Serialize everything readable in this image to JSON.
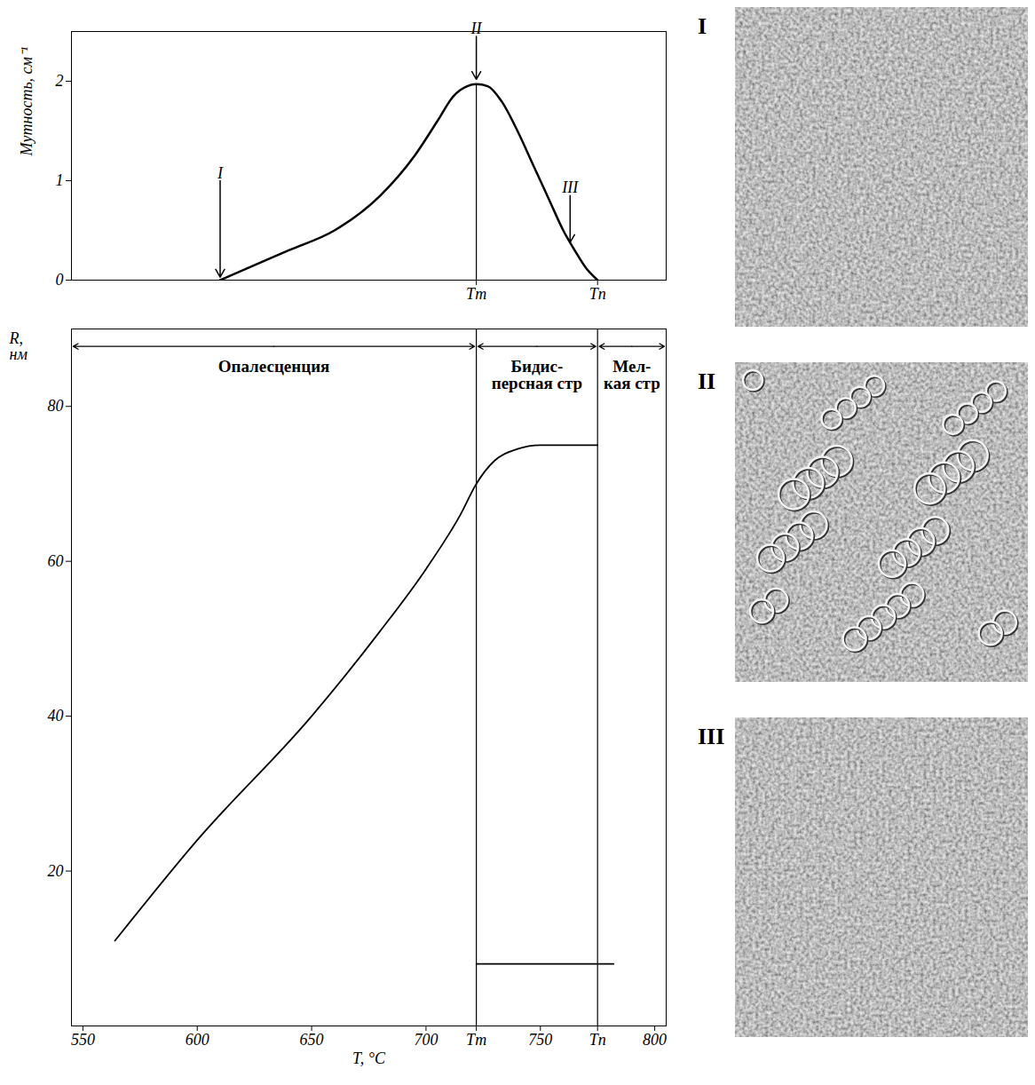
{
  "chart_data": [
    {
      "type": "line",
      "y_label": "Мутность, см⁻¹",
      "xlim": [
        545,
        805
      ],
      "ylim": [
        0,
        2.5
      ],
      "xticks": [
        {
          "value": 722,
          "label": "Tm"
        },
        {
          "value": 775,
          "label": "Tп"
        }
      ],
      "yticks": [
        0,
        1,
        2
      ],
      "series": [
        {
          "color": "#000000",
          "x": [
            610,
            625,
            640,
            660,
            680,
            695,
            705,
            712,
            718,
            722,
            727,
            733,
            740,
            747,
            754,
            760,
            765,
            770,
            775
          ],
          "values": [
            0,
            0.15,
            0.3,
            0.5,
            0.85,
            1.25,
            1.6,
            1.85,
            1.95,
            1.97,
            1.95,
            1.8,
            1.5,
            1.15,
            0.8,
            0.5,
            0.3,
            0.12,
            0
          ]
        }
      ],
      "vlines": [
        {
          "x": 722,
          "line_style": "dashed"
        }
      ],
      "arrows": [
        {
          "label": "I",
          "x": 610,
          "y1": 1.0,
          "y2": 0.03
        },
        {
          "label": "II",
          "x": 722,
          "y1": 2.45,
          "y2": 2.02
        },
        {
          "label": "III",
          "x": 763,
          "y1": 0.85,
          "y2": 0.38
        }
      ]
    },
    {
      "type": "line",
      "x_label": "T, °C",
      "y_label": "R, нм",
      "xlim": [
        545,
        805
      ],
      "ylim": [
        0,
        90
      ],
      "xticks": [
        550,
        600,
        650,
        700,
        {
          "value": 722,
          "label": "Tm"
        },
        750,
        {
          "value": 775,
          "label": "Tп"
        },
        800
      ],
      "yticks": [
        20,
        40,
        60,
        80
      ],
      "series": [
        {
          "color": "#000000",
          "x": [
            564,
            600,
            650,
            680,
            700,
            715,
            722,
            730,
            740,
            750,
            775
          ],
          "values": [
            11,
            24,
            40,
            51,
            59,
            66,
            70,
            73,
            74.5,
            75,
            75
          ]
        },
        {
          "color": "#000000",
          "x": [
            722,
            782
          ],
          "values": [
            8,
            8
          ]
        }
      ],
      "vlines": [
        {
          "x": 722,
          "line_style": "solid"
        },
        {
          "x": 775,
          "line_style": "solid"
        }
      ],
      "regions": [
        {
          "label": "Опалесценция",
          "x1": 545,
          "x2": 722
        },
        {
          "label": "Бидис-\nперсная стр",
          "x1": 722,
          "x2": 775
        },
        {
          "label": "Мел-\nкая стр",
          "x1": 775,
          "x2": 805
        }
      ]
    }
  ],
  "micrographs": {
    "labels": [
      "I",
      "II",
      "III"
    ]
  }
}
